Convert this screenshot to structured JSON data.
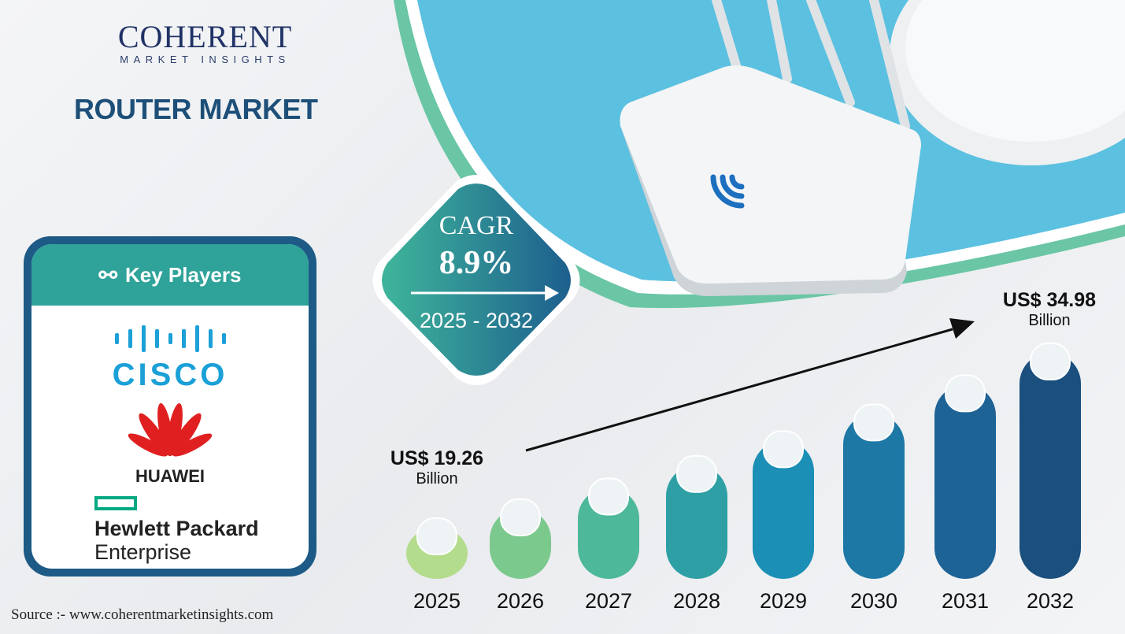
{
  "brand": {
    "name": "COHERENT",
    "tagline": "MARKET INSIGHTS"
  },
  "title": "ROUTER MARKET",
  "key_players": {
    "heading": "Key Players",
    "icon": "handshake-icon",
    "players": [
      "CISCO",
      "HUAWEI",
      "Hewlett Packard",
      "Enterprise"
    ]
  },
  "cagr": {
    "label": "CAGR",
    "value": "8.9%",
    "period": "2025 - 2032"
  },
  "source": "Source :- www.coherentmarketinsights.com",
  "colors": {
    "title": "#1d4f78",
    "card": "#1d5a86",
    "card_head": "#2fa39a",
    "bars": [
      "#b3dc8c",
      "#7cc98e",
      "#4db89a",
      "#2ea0a5",
      "#1b8fb5",
      "#1d78a6",
      "#1e6396",
      "#1a4f7e"
    ]
  },
  "chart_data": {
    "type": "bar",
    "title": "Router Market",
    "categories": [
      "2025",
      "2026",
      "2027",
      "2028",
      "2029",
      "2030",
      "2031",
      "2032"
    ],
    "values": [
      19.26,
      20.97,
      22.84,
      24.87,
      27.09,
      29.5,
      32.12,
      34.98
    ],
    "unit": "US$ Billion",
    "annotations": [
      {
        "category": "2025",
        "value": "US$ 19.26",
        "unit": "Billion"
      },
      {
        "category": "2032",
        "value": "US$ 34.98",
        "unit": "Billion"
      }
    ],
    "xlabel": "",
    "ylabel": "",
    "grid": false
  }
}
